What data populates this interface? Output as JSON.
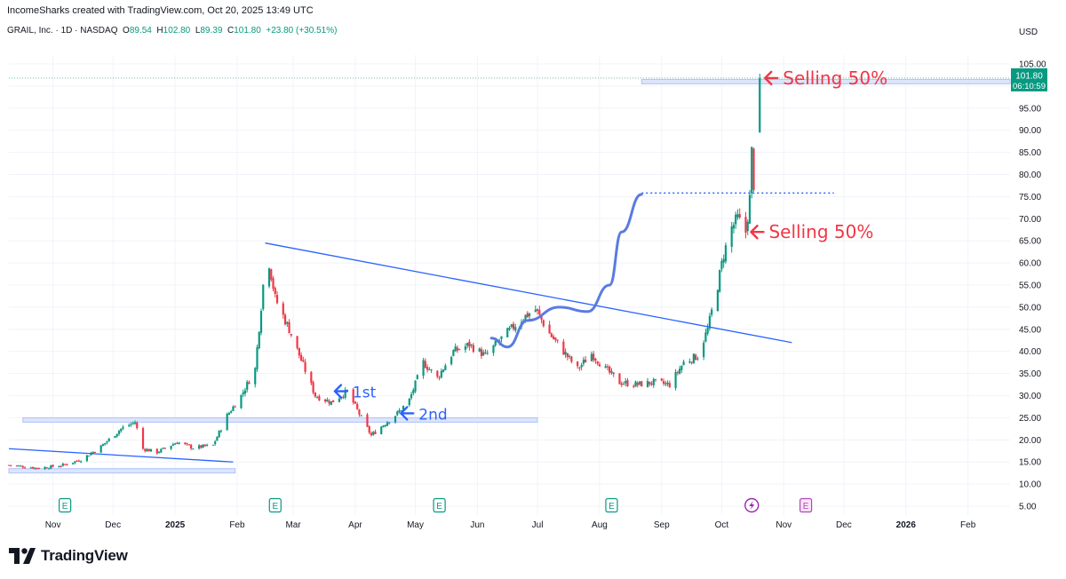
{
  "header": {
    "credit": "IncomeSharks created with TradingView.com, Oct 20, 2025 13:49 UTC",
    "symbol": "GRAIL, Inc. · 1D · NASDAQ",
    "open_label": "O",
    "open": "89.54",
    "high_label": "H",
    "high": "102.80",
    "low_label": "L",
    "low": "89.39",
    "close_label": "C",
    "close": "101.80",
    "change": "+23.80 (+30.51%)"
  },
  "price_tag": {
    "price": "101.80",
    "countdown": "06:10:59"
  },
  "branding": "TradingView",
  "colors": {
    "up": "#089981",
    "down": "#f23645",
    "line": "#2962ff",
    "zone": "#b2c3f5",
    "curve": "#5a7be0",
    "accent_red": "#f23645"
  },
  "event_markers": [
    {
      "date": "2024-11-07",
      "kind": "E",
      "icon": "earnings-icon"
    },
    {
      "date": "2025-02-20",
      "kind": "E",
      "icon": "earnings-icon"
    },
    {
      "date": "2025-05-13",
      "kind": "E",
      "icon": "earnings-icon"
    },
    {
      "date": "2025-08-07",
      "kind": "E",
      "icon": "earnings-icon"
    },
    {
      "date": "2025-10-16",
      "kind": "lightning",
      "icon": "lightning-icon"
    },
    {
      "date": "2025-11-12",
      "kind": "E",
      "icon": "earnings-icon"
    }
  ],
  "chart_data": {
    "type": "candlestick",
    "title": "GRAIL, Inc. · 1D · NASDAQ",
    "y_axis": {
      "unit_label": "USD",
      "range": [
        3,
        107
      ],
      "ticks": [
        "105.00",
        "100.00",
        "95.00",
        "90.00",
        "85.00",
        "80.00",
        "75.00",
        "70.00",
        "65.00",
        "60.00",
        "55.00",
        "50.00",
        "45.00",
        "40.00",
        "35.00",
        "30.00",
        "25.00",
        "20.00",
        "15.00",
        "10.00",
        "5.00"
      ]
    },
    "x_axis": {
      "range": [
        "2024-10-10",
        "2026-02-22"
      ],
      "ticks": [
        {
          "date": "2024-11-01",
          "label": "Nov"
        },
        {
          "date": "2024-12-01",
          "label": "Dec"
        },
        {
          "date": "2025-01-01",
          "label": "2025",
          "bold": true
        },
        {
          "date": "2025-02-01",
          "label": "Feb"
        },
        {
          "date": "2025-03-01",
          "label": "Mar"
        },
        {
          "date": "2025-04-01",
          "label": "Apr"
        },
        {
          "date": "2025-05-01",
          "label": "May"
        },
        {
          "date": "2025-06-01",
          "label": "Jun"
        },
        {
          "date": "2025-07-01",
          "label": "Jul"
        },
        {
          "date": "2025-08-01",
          "label": "Aug"
        },
        {
          "date": "2025-09-01",
          "label": "Sep"
        },
        {
          "date": "2025-10-01",
          "label": "Oct"
        },
        {
          "date": "2025-11-01",
          "label": "Nov"
        },
        {
          "date": "2025-12-01",
          "label": "Dec"
        },
        {
          "date": "2026-01-01",
          "label": "2026",
          "bold": true
        },
        {
          "date": "2026-02-01",
          "label": "Feb"
        }
      ]
    },
    "grid": true,
    "price_path": [
      [
        "2024-10-10",
        14.3
      ],
      [
        "2024-10-25",
        13.6
      ],
      [
        "2024-11-05",
        14.2
      ],
      [
        "2024-11-15",
        15.5
      ],
      [
        "2024-11-25",
        18.5
      ],
      [
        "2024-12-05",
        22.5
      ],
      [
        "2024-12-12",
        24.0
      ],
      [
        "2024-12-16",
        18.0
      ],
      [
        "2024-12-23",
        17.2
      ],
      [
        "2025-01-02",
        19.5
      ],
      [
        "2025-01-10",
        18.2
      ],
      [
        "2025-01-20",
        18.8
      ],
      [
        "2025-01-27",
        25.5
      ],
      [
        "2025-02-03",
        30.0
      ],
      [
        "2025-02-10",
        36.0
      ],
      [
        "2025-02-14",
        55.0
      ],
      [
        "2025-02-17",
        60.0
      ],
      [
        "2025-02-20",
        52.0
      ],
      [
        "2025-02-27",
        45.0
      ],
      [
        "2025-03-05",
        38.0
      ],
      [
        "2025-03-12",
        30.0
      ],
      [
        "2025-03-20",
        28.5
      ],
      [
        "2025-03-28",
        31.0
      ],
      [
        "2025-04-04",
        25.0
      ],
      [
        "2025-04-09",
        21.0
      ],
      [
        "2025-04-14",
        23.0
      ],
      [
        "2025-04-22",
        26.0
      ],
      [
        "2025-04-28",
        29.0
      ],
      [
        "2025-05-05",
        37.5
      ],
      [
        "2025-05-12",
        34.0
      ],
      [
        "2025-05-20",
        40.0
      ],
      [
        "2025-05-28",
        41.5
      ],
      [
        "2025-06-05",
        39.0
      ],
      [
        "2025-06-12",
        42.5
      ],
      [
        "2025-06-20",
        46.0
      ],
      [
        "2025-06-25",
        48.0
      ],
      [
        "2025-06-30",
        49.5
      ],
      [
        "2025-07-07",
        44.0
      ],
      [
        "2025-07-14",
        40.0
      ],
      [
        "2025-07-21",
        36.0
      ],
      [
        "2025-07-28",
        39.5
      ],
      [
        "2025-08-04",
        36.0
      ],
      [
        "2025-08-11",
        33.0
      ],
      [
        "2025-08-20",
        32.5
      ],
      [
        "2025-08-28",
        33.0
      ],
      [
        "2025-09-05",
        32.5
      ],
      [
        "2025-09-12",
        37.5
      ],
      [
        "2025-09-19",
        39.0
      ],
      [
        "2025-09-24",
        45.0
      ],
      [
        "2025-09-29",
        55.0
      ],
      [
        "2025-10-02",
        62.0
      ],
      [
        "2025-10-06",
        68.0
      ],
      [
        "2025-10-09",
        70.0
      ],
      [
        "2025-10-13",
        67.0
      ],
      [
        "2025-10-15",
        74.5
      ],
      [
        "2025-10-16",
        85.0
      ],
      [
        "2025-10-17",
        78.0
      ],
      [
        "2025-10-20",
        101.8
      ]
    ],
    "annotations": [
      {
        "label": "Selling 50%",
        "date": "2025-10-20",
        "price": 101.8
      },
      {
        "label": "Selling 50%",
        "date": "2025-10-13",
        "price": 67.0
      },
      {
        "label": "1st",
        "date": "2025-03-20",
        "price": 31.0
      },
      {
        "label": "2nd",
        "date": "2025-04-22",
        "price": 26.0
      }
    ],
    "trendlines": [
      {
        "from": [
          "2025-02-15",
          64.5
        ],
        "to": [
          "2025-11-05",
          42.0
        ],
        "color": "#2962ff"
      },
      {
        "from": [
          "2024-10-10",
          18.0
        ],
        "to": [
          "2025-01-30",
          15.0
        ],
        "color": "#2962ff"
      }
    ],
    "zones": [
      {
        "from": "2024-10-17",
        "to": "2025-07-01",
        "price": 24.5
      },
      {
        "from": "2024-10-10",
        "to": "2025-01-31",
        "price": 13.0
      },
      {
        "from": "2025-08-22",
        "to": "2026-02-22",
        "price": 101.0
      }
    ],
    "dotted_level": {
      "from": "2025-08-22",
      "to": "2025-11-26",
      "price": 75.8
    },
    "projection_path": [
      [
        "2025-06-08",
        43.0
      ],
      [
        "2025-06-16",
        41.0
      ],
      [
        "2025-06-26",
        47.0
      ],
      [
        "2025-07-12",
        50.0
      ],
      [
        "2025-07-26",
        49.0
      ],
      [
        "2025-08-06",
        55.0
      ],
      [
        "2025-08-12",
        67.0
      ],
      [
        "2025-08-22",
        75.5
      ]
    ]
  }
}
